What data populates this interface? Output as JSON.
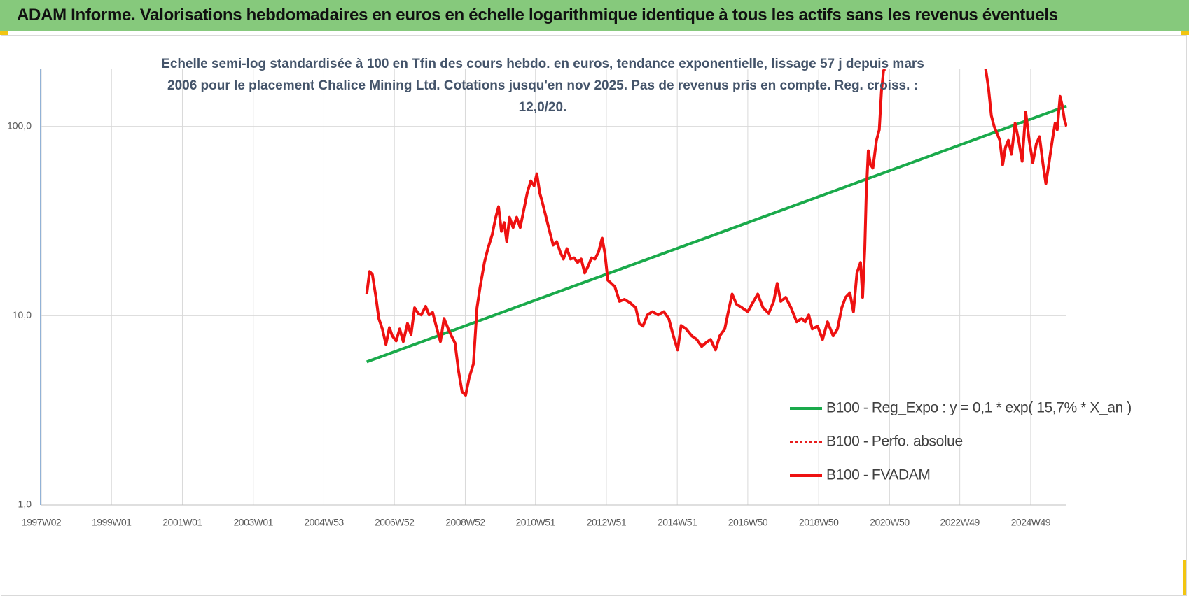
{
  "header": {
    "title": "ADAM Informe. Valorisations hebdomadaires en euros en échelle logarithmique identique à tous les actifs sans les revenus éventuels"
  },
  "chart_data": {
    "type": "line",
    "subtitle": "Echelle semi-log standardisée à 100 en Tfin des cours hebdo. en euros, tendance exponentielle, lissage 57 j depuis mars 2006 pour le placement Chalice Mining Ltd. Cotations jusqu'en nov 2025. Pas de revenus pris en compte. Reg. croiss. : 12,0/20.",
    "log_y": true,
    "grid": true,
    "legend": "lower right",
    "xlim": [
      1997,
      2025.94
    ],
    "xticks": [
      {
        "value": 1997.02,
        "label": "1997W02"
      },
      {
        "value": 1999.0,
        "label": "1999W01"
      },
      {
        "value": 2001.0,
        "label": "2001W01"
      },
      {
        "value": 2003.0,
        "label": "2003W01"
      },
      {
        "value": 2004.99,
        "label": "2004W53"
      },
      {
        "value": 2006.98,
        "label": "2006W52"
      },
      {
        "value": 2008.98,
        "label": "2008W52"
      },
      {
        "value": 2010.96,
        "label": "2010W51"
      },
      {
        "value": 2012.96,
        "label": "2012W51"
      },
      {
        "value": 2014.96,
        "label": "2014W51"
      },
      {
        "value": 2016.95,
        "label": "2016W50"
      },
      {
        "value": 2018.95,
        "label": "2018W50"
      },
      {
        "value": 2020.95,
        "label": "2020W50"
      },
      {
        "value": 2022.93,
        "label": "2022W49"
      },
      {
        "value": 2024.93,
        "label": "2024W49"
      }
    ],
    "ylim": [
      1,
      202
    ],
    "yticks": [
      {
        "value": 1,
        "label": "1,0"
      },
      {
        "value": 10,
        "label": "10,0"
      },
      {
        "value": 100,
        "label": "100,0"
      }
    ],
    "series": [
      {
        "name": "B100 - Reg_Expo : y = 0,1 * exp( 15,7% *  X_an )",
        "color": "#1aaa4b",
        "dash": "solid",
        "x": [
          2006.2,
          2025.94
        ],
        "values": [
          5.7,
          128
        ]
      },
      {
        "name": "B100 - Perfo. absolue",
        "color": "#e81c1c",
        "dash": "dotted",
        "x": [],
        "values": []
      },
      {
        "name": "B100 - FVADAM",
        "color": "#ee1111",
        "dash": "solid",
        "x": [
          2006.2,
          2006.28,
          2006.36,
          2006.46,
          2006.54,
          2006.64,
          2006.74,
          2006.84,
          2006.92,
          2007.03,
          2007.13,
          2007.23,
          2007.35,
          2007.45,
          2007.55,
          2007.65,
          2007.74,
          2007.86,
          2007.96,
          2008.06,
          2008.18,
          2008.28,
          2008.38,
          2008.5,
          2008.59,
          2008.69,
          2008.79,
          2008.89,
          2008.99,
          2009.09,
          2009.21,
          2009.31,
          2009.4,
          2009.52,
          2009.62,
          2009.74,
          2009.84,
          2009.92,
          2010.0,
          2010.08,
          2010.15,
          2010.23,
          2010.33,
          2010.43,
          2010.53,
          2010.63,
          2010.73,
          2010.83,
          2010.92,
          2011.0,
          2011.08,
          2011.16,
          2011.26,
          2011.36,
          2011.46,
          2011.56,
          2011.66,
          2011.75,
          2011.85,
          2011.95,
          2012.05,
          2012.15,
          2012.25,
          2012.35,
          2012.45,
          2012.54,
          2012.64,
          2012.74,
          2012.84,
          2012.92,
          2013.0,
          2013.1,
          2013.2,
          2013.33,
          2013.47,
          2013.63,
          2013.79,
          2013.89,
          2013.99,
          2014.12,
          2014.26,
          2014.42,
          2014.58,
          2014.72,
          2014.85,
          2014.97,
          2015.07,
          2015.21,
          2015.37,
          2015.51,
          2015.65,
          2015.76,
          2015.9,
          2016.04,
          2016.16,
          2016.3,
          2016.4,
          2016.51,
          2016.63,
          2016.79,
          2016.95,
          2017.09,
          2017.23,
          2017.38,
          2017.54,
          2017.68,
          2017.78,
          2017.88,
          2018.02,
          2018.17,
          2018.33,
          2018.47,
          2018.57,
          2018.67,
          2018.77,
          2018.92,
          2019.06,
          2019.2,
          2019.36,
          2019.48,
          2019.6,
          2019.71,
          2019.83,
          2019.93,
          2020.03,
          2020.13,
          2020.19,
          2020.25,
          2020.29,
          2020.35,
          2020.41,
          2020.48,
          2020.58,
          2020.66,
          2020.72,
          2020.78,
          2020.82,
          2021.5,
          2023.66,
          2023.74,
          2023.82,
          2023.9,
          2023.98,
          2024.06,
          2024.14,
          2024.22,
          2024.3,
          2024.39,
          2024.49,
          2024.59,
          2024.69,
          2024.79,
          2024.89,
          2024.99,
          2025.09,
          2025.18,
          2025.28,
          2025.36,
          2025.44,
          2025.54,
          2025.62,
          2025.68,
          2025.76,
          2025.82,
          2025.88,
          2025.94
        ],
        "values": [
          13.0,
          17.1,
          16.5,
          12.5,
          9.67,
          8.51,
          7.06,
          8.65,
          7.82,
          7.36,
          8.51,
          7.3,
          9.1,
          7.95,
          11.0,
          10.3,
          10.1,
          11.2,
          10.1,
          10.4,
          8.51,
          7.3,
          9.67,
          8.51,
          7.82,
          7.18,
          5.11,
          3.96,
          3.8,
          4.69,
          5.56,
          11.0,
          14.2,
          19.1,
          22.6,
          26.8,
          33.1,
          37.6,
          27.9,
          31.0,
          24.6,
          33.1,
          29.2,
          33.1,
          29.2,
          36.1,
          44.6,
          51.5,
          48.5,
          56.1,
          44.6,
          39.3,
          33.1,
          27.9,
          23.6,
          24.6,
          21.7,
          19.9,
          22.6,
          19.9,
          20.2,
          19.1,
          19.9,
          16.8,
          18.3,
          20.2,
          19.9,
          21.7,
          25.7,
          21.3,
          15.4,
          14.8,
          14.2,
          11.9,
          12.2,
          11.7,
          11.0,
          9.1,
          8.81,
          10.1,
          10.5,
          10.1,
          10.5,
          9.67,
          7.82,
          6.59,
          8.88,
          8.51,
          7.82,
          7.49,
          6.88,
          7.18,
          7.49,
          6.59,
          7.82,
          8.51,
          10.5,
          13.0,
          11.5,
          11.0,
          10.5,
          11.7,
          13.0,
          11.0,
          10.3,
          11.9,
          14.8,
          11.9,
          12.5,
          11.0,
          9.27,
          9.67,
          9.27,
          10.1,
          8.51,
          8.81,
          7.49,
          9.27,
          7.82,
          8.51,
          11.0,
          12.5,
          13.2,
          10.5,
          16.8,
          19.1,
          12.5,
          22.6,
          42.8,
          74.3,
          62.7,
          60.2,
          84.4,
          95.9,
          153,
          197,
          201,
          null,
          201,
          160,
          114,
          100,
          91.9,
          84.4,
          62.7,
          77.5,
          84.4,
          71.2,
          104,
          84.4,
          65.4,
          119,
          84.4,
          64.3,
          80.9,
          88.1,
          62.7,
          49.8,
          62.7,
          84.4,
          104,
          95.9,
          144,
          129,
          109,
          100
        ]
      }
    ]
  }
}
